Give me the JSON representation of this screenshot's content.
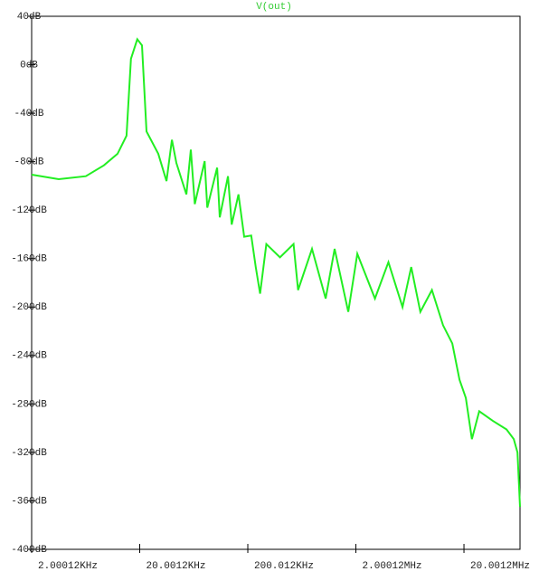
{
  "chart_data": {
    "type": "line",
    "title": "V(out)",
    "title_color": "#33cc33",
    "xscale": "log",
    "xlim": [
      2000,
      66000000
    ],
    "xticks": [
      {
        "value": 2000,
        "label": "2.00012KHz"
      },
      {
        "value": 20000,
        "label": "20.0012KHz"
      },
      {
        "value": 200000,
        "label": "200.012KHz"
      },
      {
        "value": 2000000,
        "label": "2.00012MHz"
      },
      {
        "value": 20000000,
        "label": "20.0012MHz"
      }
    ],
    "ylim": [
      -400,
      40
    ],
    "yticks": [
      {
        "value": 40,
        "label": "40dB"
      },
      {
        "value": 0,
        "label": "0dB"
      },
      {
        "value": -40,
        "label": "-40dB"
      },
      {
        "value": -80,
        "label": "-80dB"
      },
      {
        "value": -120,
        "label": "-120dB"
      },
      {
        "value": -160,
        "label": "-160dB"
      },
      {
        "value": -200,
        "label": "-200dB"
      },
      {
        "value": -240,
        "label": "-240dB"
      },
      {
        "value": -280,
        "label": "-280dB"
      },
      {
        "value": -320,
        "label": "-320dB"
      },
      {
        "value": -360,
        "label": "-360dB"
      },
      {
        "value": -400,
        "label": "-400dB"
      }
    ],
    "series": [
      {
        "color": "#22ee22",
        "x": [
          2000,
          3560,
          6340,
          9320,
          12480,
          15100,
          16600,
          19000,
          21000,
          23100,
          29700,
          35400,
          39700,
          43600,
          54000,
          59400,
          64600,
          79700,
          84300,
          104000,
          110000,
          131000,
          142000,
          164000,
          185000,
          215000,
          237000,
          260000,
          297000,
          397000,
          530000,
          584000,
          785000,
          1050000,
          1270000,
          1700000,
          2060000,
          3000000,
          4000000,
          5400000,
          6500000,
          7890000,
          10100000,
          12800000,
          15600000,
          18200000,
          20800000,
          23700000,
          27700000,
          37000000,
          49500000,
          57800000,
          62500000,
          66000000
        ],
        "values": [
          -90.7,
          -94.5,
          -92,
          -83,
          -73.5,
          -58.6,
          5,
          21,
          16,
          -55,
          -73.5,
          -96,
          -62,
          -81,
          -107,
          -70,
          -115,
          -79.5,
          -118,
          -85,
          -126,
          -92,
          -132,
          -107,
          -142,
          -141,
          -167,
          -189,
          -148,
          -159,
          -148,
          -186,
          -152,
          -193,
          -152,
          -204,
          -156,
          -193,
          -163,
          -200,
          -167,
          -204,
          -186,
          -215,
          -230,
          -260,
          -275,
          -309,
          -286,
          -294,
          -301,
          -309,
          -320,
          -365
        ]
      }
    ]
  }
}
